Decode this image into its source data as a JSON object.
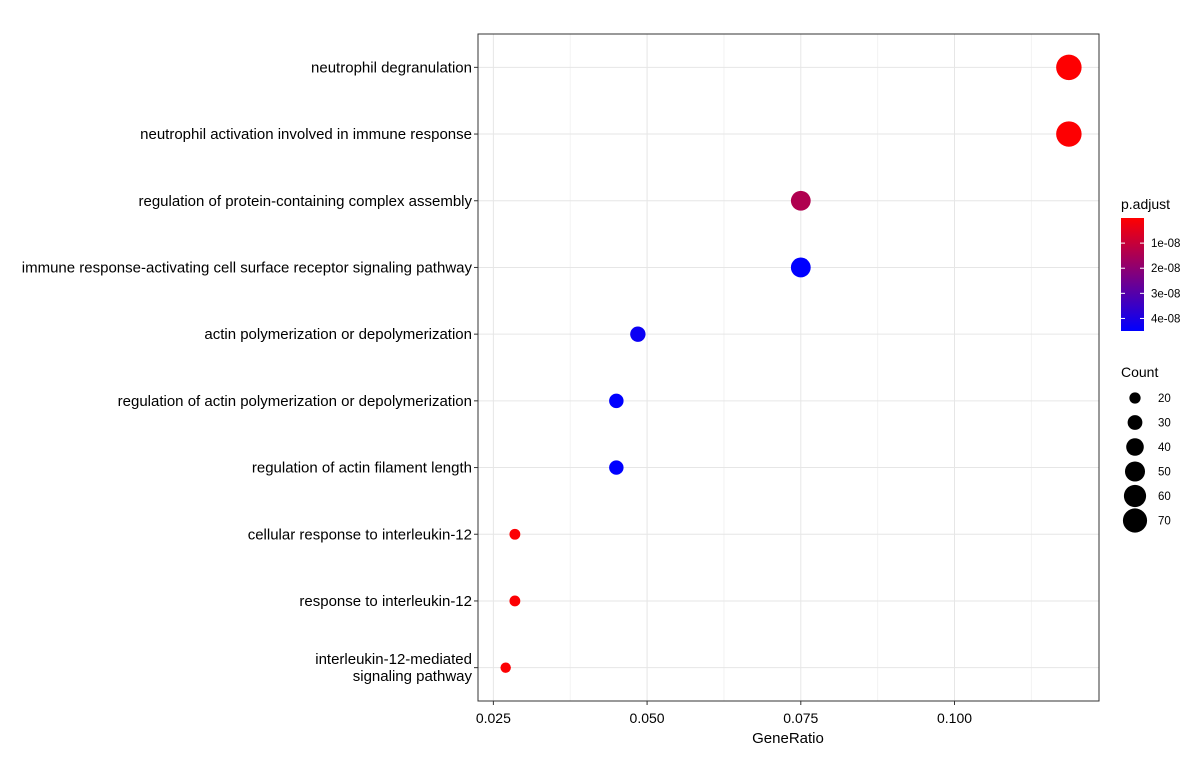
{
  "chart_data": {
    "type": "scatter",
    "xlabel": "GeneRatio",
    "ylabel": "",
    "xlim": [
      0.0225,
      0.1235
    ],
    "x_ticks": [
      "0.025",
      "0.050",
      "0.075",
      "0.100"
    ],
    "x_tick_values": [
      0.025,
      0.05,
      0.075,
      0.1
    ],
    "grid": true,
    "legend_position": "right",
    "categories": [
      [
        "neutrophil degranulation"
      ],
      [
        "neutrophil activation involved in immune response"
      ],
      [
        "regulation of protein-containing complex assembly"
      ],
      [
        "immune response-activating cell surface receptor signaling pathway"
      ],
      [
        "actin polymerization or depolymerization"
      ],
      [
        "regulation of actin polymerization or depolymerization"
      ],
      [
        "regulation of actin filament length"
      ],
      [
        "cellular response to interleukin-12"
      ],
      [
        "response to interleukin-12"
      ],
      [
        "interleukin-12-mediated",
        "signaling pathway"
      ]
    ],
    "points": [
      {
        "gene_ratio": 0.1186,
        "count": 77,
        "p_adjust": 2e-10
      },
      {
        "gene_ratio": 0.1186,
        "count": 77,
        "p_adjust": 3e-10
      },
      {
        "gene_ratio": 0.075,
        "count": 49,
        "p_adjust": 1.4e-08
      },
      {
        "gene_ratio": 0.075,
        "count": 49,
        "p_adjust": 4.5e-08
      },
      {
        "gene_ratio": 0.0485,
        "count": 32,
        "p_adjust": 4.3e-08
      },
      {
        "gene_ratio": 0.045,
        "count": 29,
        "p_adjust": 4.5e-08
      },
      {
        "gene_ratio": 0.045,
        "count": 29,
        "p_adjust": 4.5e-08
      },
      {
        "gene_ratio": 0.0285,
        "count": 19,
        "p_adjust": 5e-10
      },
      {
        "gene_ratio": 0.0285,
        "count": 19,
        "p_adjust": 5e-10
      },
      {
        "gene_ratio": 0.027,
        "count": 18,
        "p_adjust": 5e-10
      }
    ],
    "color_legend": {
      "title": "p.adjust",
      "ticks": [
        {
          "label": "1e-08",
          "value": 1e-08
        },
        {
          "label": "2e-08",
          "value": 2e-08
        },
        {
          "label": "3e-08",
          "value": 3e-08
        },
        {
          "label": "4e-08",
          "value": 4e-08
        }
      ],
      "range": [
        0,
        4.5e-08
      ],
      "color_low": "#ff0000",
      "color_high": "#0000ff"
    },
    "size_legend": {
      "title": "Count",
      "values": [
        20,
        30,
        40,
        50,
        60,
        70
      ],
      "labels": [
        "20",
        "30",
        "40",
        "50",
        "60",
        "70"
      ]
    }
  }
}
